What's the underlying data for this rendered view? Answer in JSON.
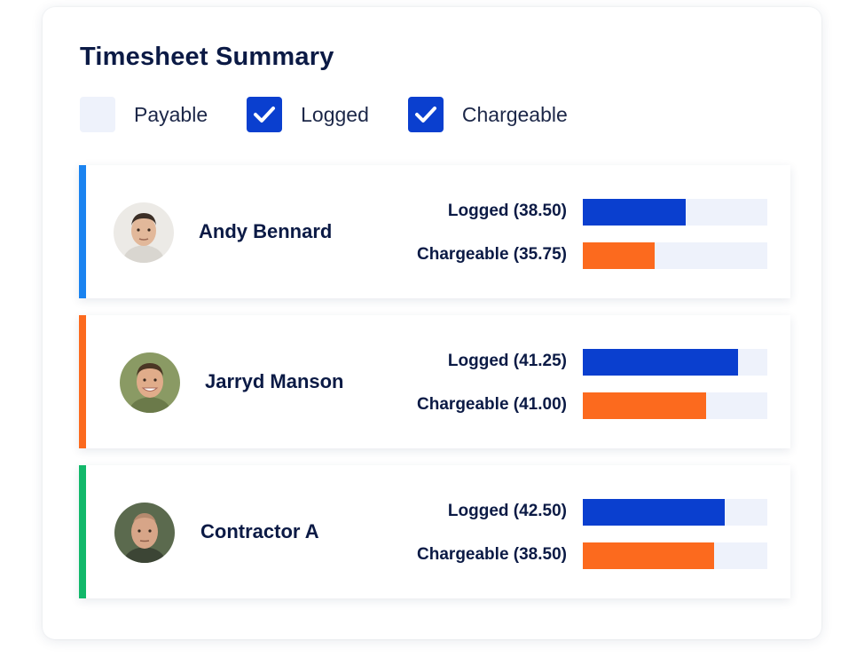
{
  "title": "Timesheet Summary",
  "colors": {
    "logged": "#0a3fcf",
    "chargeable": "#fc6a1e",
    "track": "#eef2fb"
  },
  "filters": [
    {
      "label": "Payable",
      "checked": false
    },
    {
      "label": "Logged",
      "checked": true
    },
    {
      "label": "Chargeable",
      "checked": true
    }
  ],
  "people": [
    {
      "name": "Andy Bennard",
      "accent": "#1a83f0",
      "avatar": "avatar-photo",
      "logged_label": "Logged (38.50)",
      "logged_fill": 0.56,
      "chargeable_label": "Chargeable (35.75)",
      "chargeable_fill": 0.39
    },
    {
      "name": "Jarryd Manson",
      "accent": "#fc6a1e",
      "avatar": "avatar-photo",
      "logged_label": "Logged (41.25)",
      "logged_fill": 0.84,
      "chargeable_label": "Chargeable (41.00)",
      "chargeable_fill": 0.67
    },
    {
      "name": "Contractor A",
      "accent": "#12b86a",
      "avatar": "avatar-photo",
      "logged_label": "Logged (42.50)",
      "logged_fill": 0.77,
      "chargeable_label": "Chargeable (38.50)",
      "chargeable_fill": 0.71
    }
  ]
}
